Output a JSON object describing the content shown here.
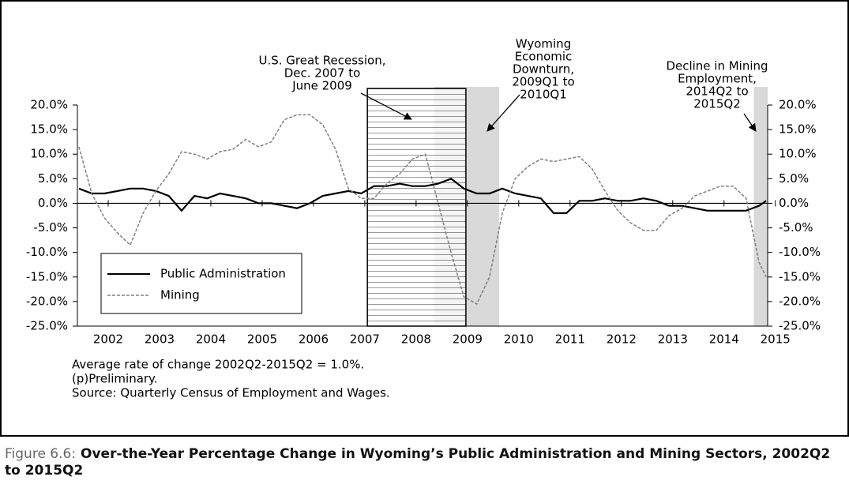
{
  "chart_data": {
    "type": "line",
    "x": [
      2001.43,
      2001.68,
      2001.93,
      2002.18,
      2002.43,
      2002.68,
      2002.93,
      2003.18,
      2003.43,
      2003.68,
      2003.93,
      2004.18,
      2004.43,
      2004.68,
      2004.93,
      2005.18,
      2005.43,
      2005.68,
      2005.93,
      2006.18,
      2006.43,
      2006.68,
      2006.93,
      2007.18,
      2007.43,
      2007.68,
      2007.93,
      2008.18,
      2008.43,
      2008.68,
      2008.93,
      2009.18,
      2009.43,
      2009.68,
      2009.93,
      2010.18,
      2010.43,
      2010.68,
      2010.93,
      2011.18,
      2011.43,
      2011.68,
      2011.93,
      2012.18,
      2012.43,
      2012.68,
      2012.93,
      2013.18,
      2013.43,
      2013.68,
      2013.93,
      2014.18,
      2014.43,
      2014.68,
      2014.82
    ],
    "series": [
      {
        "name": "Public Administration",
        "color": "#000000",
        "dash": false,
        "values": [
          3,
          2,
          2,
          2.5,
          3,
          3,
          2.5,
          1.5,
          -1.5,
          1.5,
          1,
          2,
          1.5,
          1,
          0,
          0,
          -0.5,
          -1,
          0,
          1.5,
          2,
          2.5,
          2,
          3.5,
          3.5,
          4,
          3.5,
          3.5,
          4,
          5,
          3,
          2,
          2,
          3,
          2,
          1.5,
          1,
          -2,
          -2,
          0.5,
          0.5,
          1,
          0.5,
          0.5,
          1,
          0.5,
          -0.5,
          -0.5,
          -1,
          -1.5,
          -1.5,
          -1.5,
          -1.5,
          -0.5,
          0.5
        ]
      },
      {
        "name": "Mining",
        "color": "#808080",
        "dash": true,
        "values": [
          11.5,
          2,
          -3,
          -6,
          -8.5,
          -2,
          2.5,
          6,
          10.5,
          10,
          9,
          10.5,
          11,
          13,
          11.5,
          12.5,
          17,
          18,
          18,
          16,
          11,
          3,
          1,
          1,
          4,
          6,
          9,
          10,
          0,
          -10,
          -19,
          -20.5,
          -15,
          -2,
          5,
          7.5,
          9,
          8.5,
          9,
          9.5,
          7,
          2.5,
          -1.5,
          -4,
          -5.5,
          -5.5,
          -2.5,
          -1,
          1.5,
          2.5,
          3.5,
          3.5,
          1,
          -12,
          -15
        ]
      }
    ],
    "xlim": [
      2001.4,
      2014.85
    ],
    "xticks": [
      2002,
      2003,
      2004,
      2005,
      2006,
      2007,
      2008,
      2009,
      2010,
      2011,
      2012,
      2013,
      2014,
      2015
    ],
    "ylim": [
      -25,
      20
    ],
    "yticks": [
      {
        "value": -25,
        "label": "-25.0%"
      },
      {
        "value": -20,
        "label": "-20.0%"
      },
      {
        "value": -15,
        "label": "-15.0%"
      },
      {
        "value": -10,
        "label": "-10.0%"
      },
      {
        "value": -5,
        "label": "-5.0%"
      },
      {
        "value": 0,
        "label": "0.0%"
      },
      {
        "value": 5,
        "label": "5.0%"
      },
      {
        "value": 10,
        "label": "10.0%"
      },
      {
        "value": 15,
        "label": "15.0%"
      },
      {
        "value": 20,
        "label": "20.0%"
      }
    ],
    "legend": "lower left",
    "shaded_regions": [
      {
        "x": [
          2008.35,
          2009.62
        ],
        "color": "#d9d9d9",
        "style": "solid"
      },
      {
        "x": [
          2007.05,
          2008.97
        ],
        "color": "#000000",
        "style": "hatched"
      },
      {
        "x": [
          2014.58,
          2014.85
        ],
        "color": "#d9d9d9",
        "style": "solid"
      }
    ],
    "annotations": [
      {
        "lines": [
          "U.S. Great Recession,",
          "Dec. 2007 to",
          "June 2009"
        ]
      },
      {
        "lines": [
          "Wyoming",
          "Economic",
          "Downturn,",
          "2009Q1 to",
          "2010Q1"
        ]
      },
      {
        "lines": [
          "Decline in Mining",
          "Employment,",
          "2014Q2 to",
          "2015Q2"
        ]
      }
    ],
    "notes": [
      "Average rate of change 2002Q2-2015Q2 = 1.0%.",
      "(p)Preliminary.",
      "Source: Quarterly Census of Employment and Wages."
    ],
    "caption": {
      "label": "Figure 6.6:",
      "text": "Over-the-Year Percentage Change in Wyoming’s Public Administration and Mining Sectors, 2002Q2 to 2015Q2"
    }
  }
}
